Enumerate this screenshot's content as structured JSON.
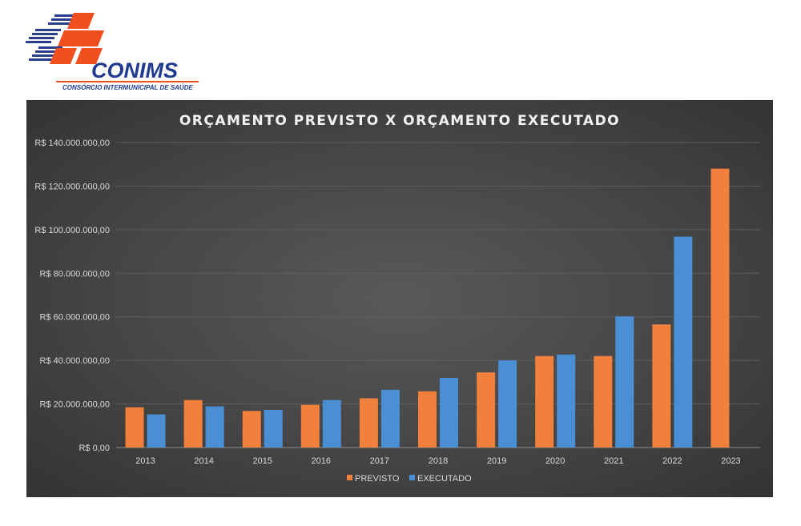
{
  "logo": {
    "name": "CONIMS",
    "subtitle": "CONSÓRCIO INTERMUNICIPAL DE SAÚDE",
    "colors": {
      "cross": "#f04e1c",
      "stripes": "#2b3d8f"
    }
  },
  "chart_data": {
    "type": "bar",
    "title": "ORÇAMENTO PREVISTO X ORÇAMENTO EXECUTADO",
    "xlabel": "",
    "ylabel": "",
    "categories": [
      "2013",
      "2014",
      "2015",
      "2016",
      "2017",
      "2018",
      "2019",
      "2020",
      "2021",
      "2022",
      "2023"
    ],
    "series": [
      {
        "name": "PREVISTO",
        "color": "#f0803c",
        "values": [
          18500000,
          21800000,
          16800000,
          19600000,
          22600000,
          25800000,
          34500000,
          42000000,
          42000000,
          56500000,
          128000000
        ]
      },
      {
        "name": "EXECUTADO",
        "color": "#4a8fd4",
        "values": [
          15200000,
          18900000,
          17300000,
          21800000,
          26500000,
          32000000,
          40000000,
          42700000,
          60200000,
          96800000,
          null
        ]
      }
    ],
    "ylim": [
      0,
      140000000
    ],
    "yticks": [
      0,
      20000000,
      40000000,
      60000000,
      80000000,
      100000000,
      120000000,
      140000000
    ],
    "ytick_labels": [
      "R$ 0,00",
      "R$ 20.000.000,00",
      "R$ 40.000.000,00",
      "R$ 60.000.000,00",
      "R$ 80.000.000,00",
      "R$ 100.000.000,00",
      "R$ 120.000.000,00",
      "R$ 140.000.000,00"
    ],
    "grid": true,
    "legend": "bottom-center"
  }
}
